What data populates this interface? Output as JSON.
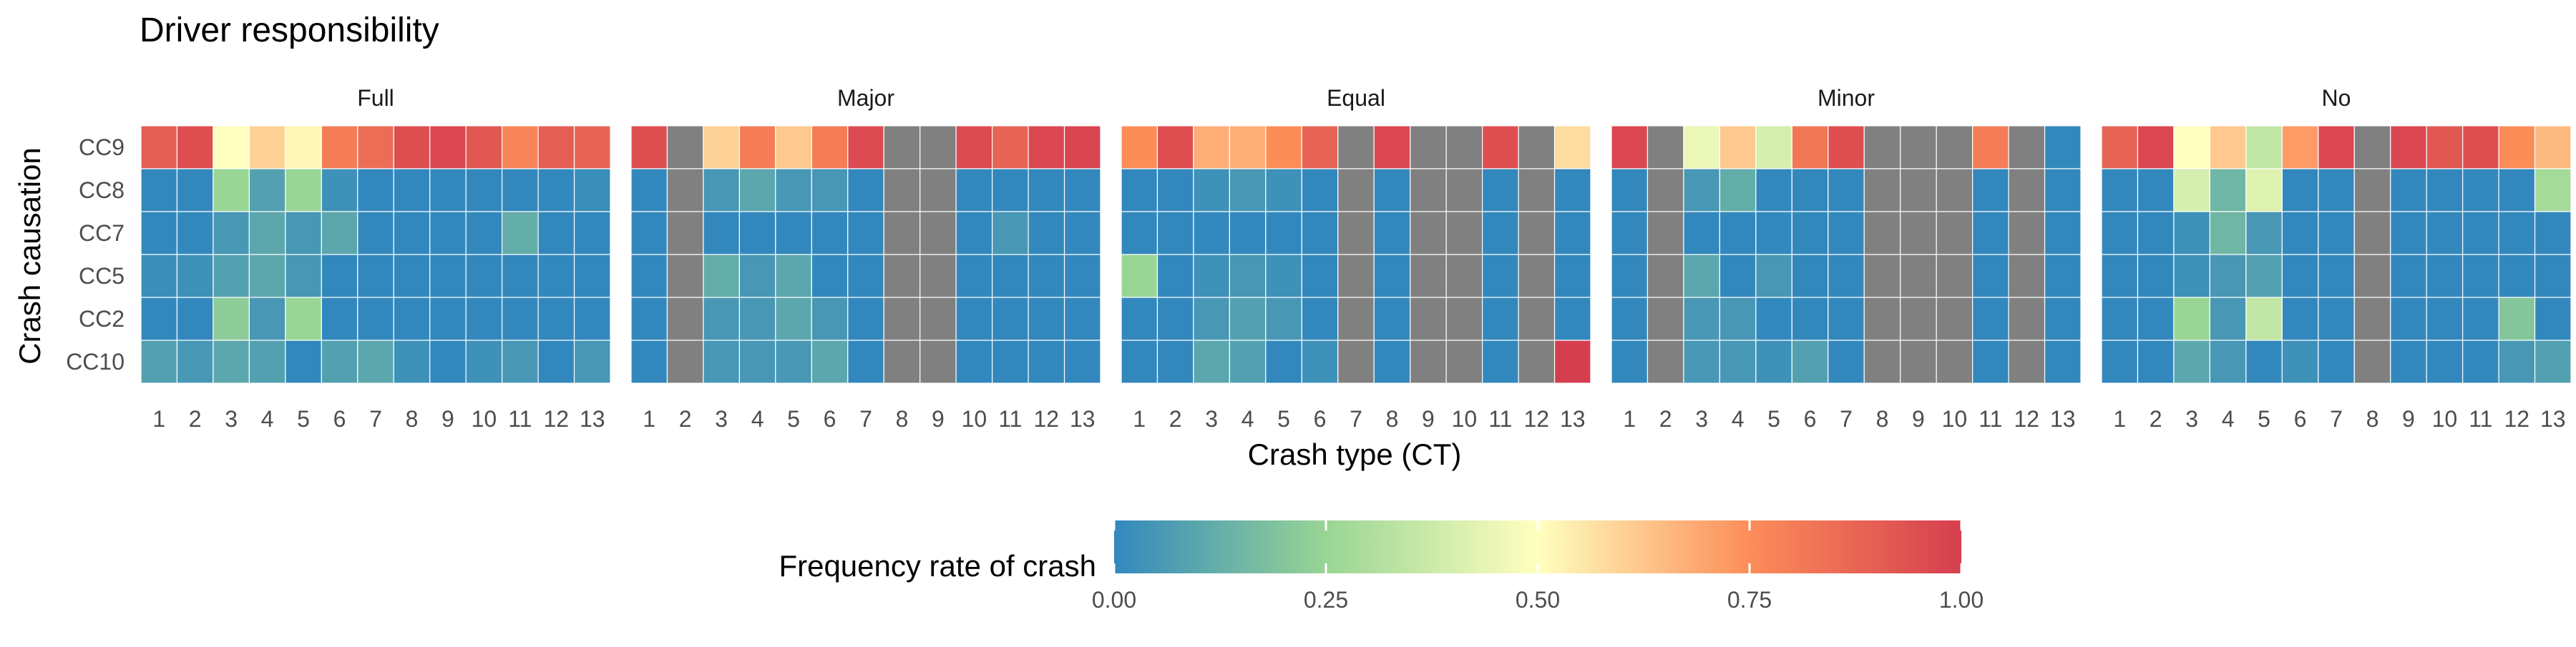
{
  "chart_data": {
    "type": "heatmap",
    "title": "Driver responsibility",
    "xlabel": "Crash type (CT)",
    "ylabel": "Crash causation",
    "x_categories": [
      "1",
      "2",
      "3",
      "4",
      "5",
      "6",
      "7",
      "8",
      "9",
      "10",
      "11",
      "12",
      "13"
    ],
    "y_categories": [
      "CC9",
      "CC8",
      "CC7",
      "CC5",
      "CC2",
      "CC10"
    ],
    "missing_color": "#808080",
    "facets": [
      {
        "label": "Full",
        "values": [
          [
            0.9,
            0.95,
            0.5,
            0.6,
            0.52,
            0.8,
            0.85,
            0.95,
            0.97,
            0.92,
            0.78,
            0.9,
            0.88
          ],
          [
            0.0,
            0.0,
            0.25,
            0.08,
            0.25,
            0.03,
            0.0,
            0.0,
            0.0,
            0.0,
            0.0,
            0.0,
            0.02
          ],
          [
            0.0,
            0.0,
            0.05,
            0.1,
            0.05,
            0.1,
            0.0,
            0.0,
            0.0,
            0.0,
            0.12,
            0.0,
            0.0
          ],
          [
            0.02,
            0.03,
            0.08,
            0.1,
            0.05,
            0.0,
            0.0,
            0.0,
            0.0,
            0.0,
            0.0,
            0.0,
            0.0
          ],
          [
            0.0,
            0.0,
            0.22,
            0.05,
            0.25,
            0.0,
            0.0,
            0.0,
            0.0,
            0.0,
            0.0,
            0.0,
            0.0
          ],
          [
            0.08,
            0.05,
            0.1,
            0.08,
            0.0,
            0.08,
            0.1,
            0.03,
            0.0,
            0.03,
            0.05,
            0.0,
            0.05
          ]
        ]
      },
      {
        "label": "Major",
        "values": [
          [
            0.95,
            null,
            0.6,
            0.8,
            0.62,
            0.8,
            0.96,
            null,
            null,
            0.96,
            0.88,
            0.97,
            0.98
          ],
          [
            0.0,
            null,
            0.05,
            0.1,
            0.05,
            0.05,
            0.0,
            null,
            null,
            0.0,
            0.0,
            0.0,
            0.0
          ],
          [
            0.0,
            null,
            0.0,
            0.0,
            0.0,
            0.0,
            0.0,
            null,
            null,
            0.0,
            0.05,
            0.0,
            0.0
          ],
          [
            0.0,
            null,
            0.12,
            0.05,
            0.1,
            0.0,
            0.0,
            null,
            null,
            0.0,
            0.0,
            0.0,
            0.0
          ],
          [
            0.0,
            null,
            0.05,
            0.05,
            0.1,
            0.05,
            0.0,
            null,
            null,
            0.0,
            0.0,
            0.0,
            0.0
          ],
          [
            0.0,
            null,
            0.05,
            0.05,
            0.05,
            0.1,
            0.0,
            null,
            null,
            0.0,
            0.0,
            0.0,
            0.0
          ]
        ]
      },
      {
        "label": "Equal",
        "values": [
          [
            0.75,
            0.95,
            0.68,
            0.68,
            0.75,
            0.88,
            null,
            0.97,
            null,
            null,
            0.95,
            null,
            0.58
          ],
          [
            0.0,
            0.0,
            0.03,
            0.05,
            0.03,
            0.0,
            null,
            0.0,
            null,
            null,
            0.0,
            null,
            0.0
          ],
          [
            0.0,
            0.0,
            0.0,
            0.0,
            0.0,
            0.0,
            null,
            0.0,
            null,
            null,
            0.0,
            null,
            0.0
          ],
          [
            0.25,
            0.0,
            0.03,
            0.05,
            0.03,
            0.0,
            null,
            0.0,
            null,
            null,
            0.0,
            null,
            0.0
          ],
          [
            0.0,
            0.0,
            0.05,
            0.08,
            0.05,
            0.0,
            null,
            0.0,
            null,
            null,
            0.0,
            null,
            0.0
          ],
          [
            0.0,
            0.0,
            0.1,
            0.08,
            0.0,
            0.03,
            null,
            0.0,
            null,
            null,
            0.0,
            null,
            1.0
          ]
        ]
      },
      {
        "label": "Minor",
        "values": [
          [
            0.97,
            null,
            0.45,
            0.62,
            0.4,
            0.82,
            0.95,
            null,
            null,
            null,
            0.8,
            null,
            0.0
          ],
          [
            0.0,
            null,
            0.05,
            0.12,
            0.0,
            0.0,
            0.0,
            null,
            null,
            null,
            0.0,
            null,
            0.0
          ],
          [
            0.0,
            null,
            0.0,
            0.0,
            0.0,
            0.0,
            0.0,
            null,
            null,
            null,
            0.0,
            null,
            0.0
          ],
          [
            0.0,
            null,
            0.1,
            0.0,
            0.05,
            0.0,
            0.0,
            null,
            null,
            null,
            0.0,
            null,
            0.0
          ],
          [
            0.0,
            null,
            0.05,
            0.05,
            0.0,
            0.0,
            0.0,
            null,
            null,
            null,
            0.0,
            null,
            0.0
          ],
          [
            0.0,
            null,
            0.05,
            0.05,
            0.03,
            0.08,
            0.0,
            null,
            null,
            null,
            0.0,
            null,
            0.0
          ]
        ]
      },
      {
        "label": "No",
        "values": [
          [
            0.88,
            0.97,
            0.5,
            0.62,
            0.35,
            0.72,
            0.97,
            null,
            0.97,
            0.92,
            0.95,
            0.75,
            0.65
          ],
          [
            0.0,
            0.0,
            0.4,
            0.15,
            0.42,
            0.0,
            0.0,
            null,
            0.0,
            0.0,
            0.0,
            0.0,
            0.28
          ],
          [
            0.0,
            0.0,
            0.03,
            0.15,
            0.05,
            0.0,
            0.0,
            null,
            0.0,
            0.0,
            0.0,
            0.0,
            0.0
          ],
          [
            0.0,
            0.0,
            0.03,
            0.05,
            0.08,
            0.0,
            0.0,
            null,
            0.0,
            0.0,
            0.0,
            0.0,
            0.0
          ],
          [
            0.0,
            0.0,
            0.25,
            0.05,
            0.35,
            0.0,
            0.0,
            null,
            0.0,
            0.0,
            0.0,
            0.2,
            0.0
          ],
          [
            0.0,
            0.0,
            0.1,
            0.05,
            0.0,
            0.03,
            0.0,
            null,
            0.0,
            0.0,
            0.0,
            0.05,
            0.08
          ]
        ]
      }
    ],
    "legend": {
      "title": "Frequency rate of crash",
      "position": "bottom",
      "range": [
        0,
        1
      ],
      "tick_labels": [
        "0.00",
        "0.25",
        "0.50",
        "0.75",
        "1.00"
      ],
      "tick_values": [
        0,
        0.25,
        0.5,
        0.75,
        1
      ],
      "colors": [
        "#3288bd",
        "#99d594",
        "#ffffbf",
        "#fc8d59",
        "#d53e4f"
      ]
    }
  }
}
